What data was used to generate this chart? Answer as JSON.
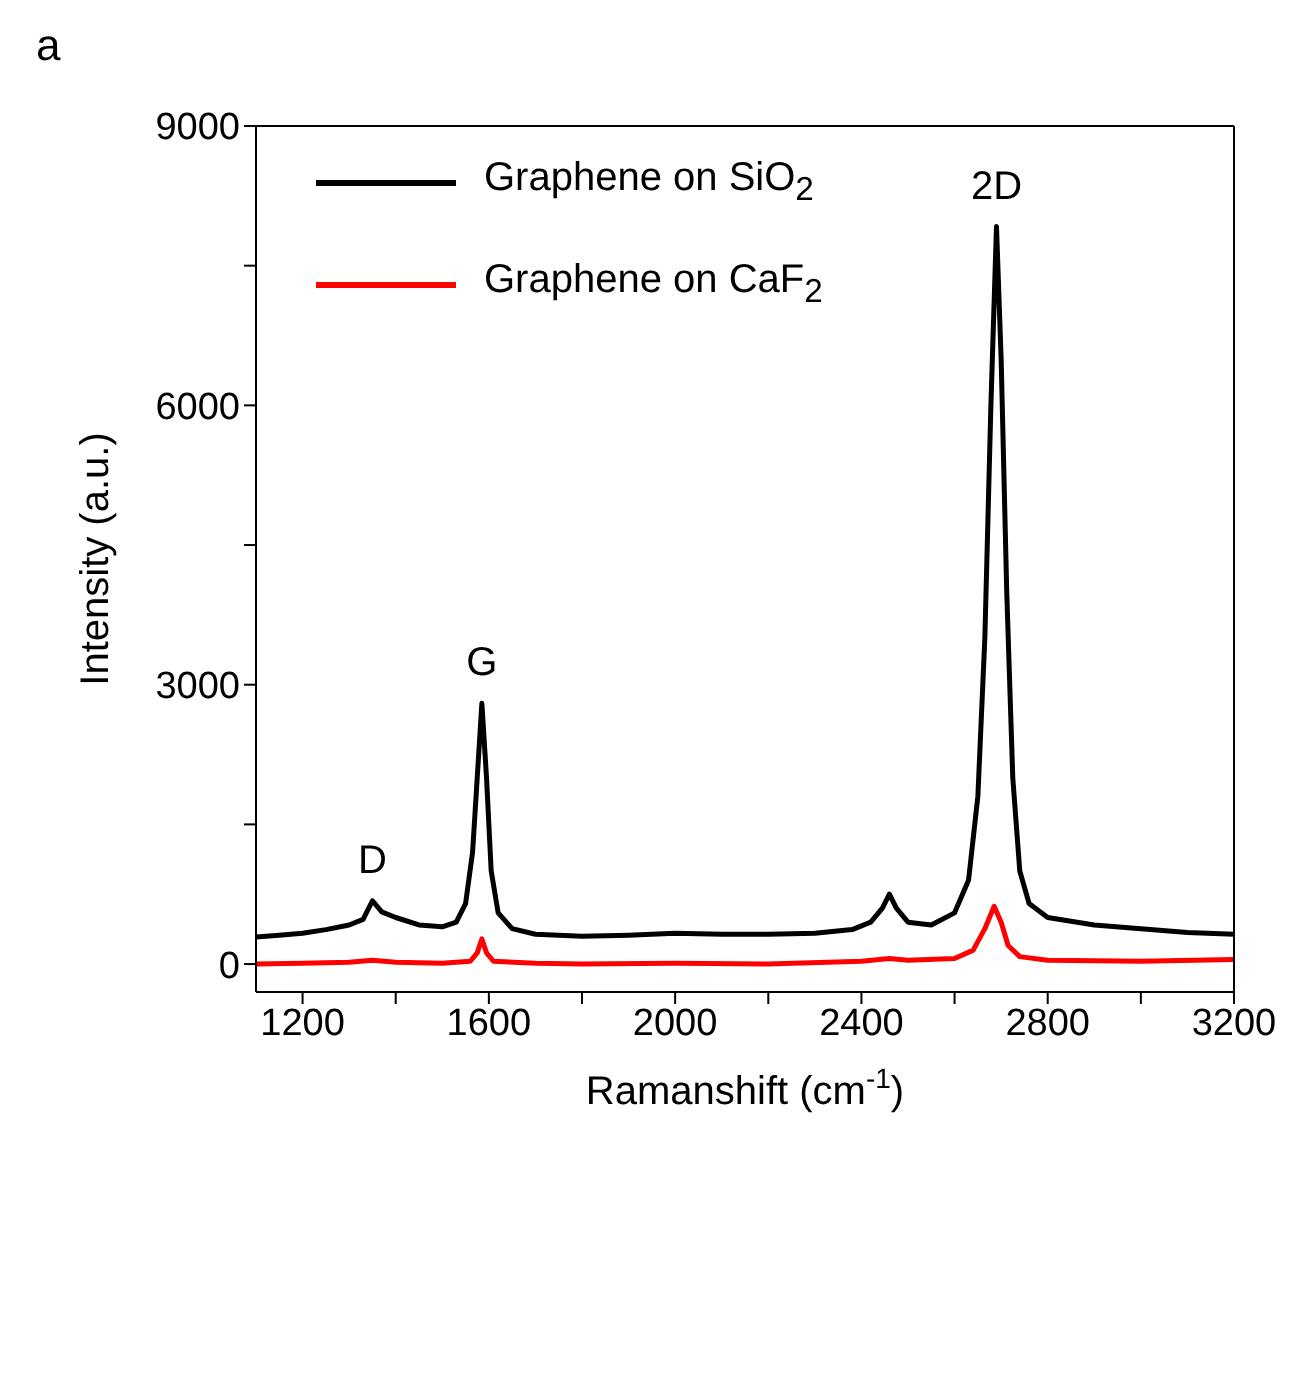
{
  "chart_data": {
    "type": "line",
    "xlabel": "Ramanshift (cm$^{-1}$)",
    "ylabel": "Intensity (a.u.)",
    "xlim": [
      1100,
      3200
    ],
    "ylim": [
      -300,
      9000
    ],
    "xticks": [
      1200,
      {
        "value": 1400,
        "label": null
      },
      1600,
      {
        "value": 1800,
        "label": null
      },
      2000,
      {
        "value": 2200,
        "label": null
      },
      2400,
      {
        "value": 2600,
        "label": null
      },
      2800,
      {
        "value": 3000,
        "label": null
      },
      3200
    ],
    "yticks": [
      0,
      {
        "value": 1500,
        "label": null
      },
      3000,
      {
        "value": 4500,
        "label": null
      },
      6000,
      {
        "value": 7500,
        "label": null
      },
      9000
    ],
    "legend": "top left",
    "marker": "none",
    "line_style": "solid",
    "annotations": [
      "a",
      {
        "text": "D",
        "x": 1350,
        "y": 680
      },
      {
        "text": "G",
        "x": 1585,
        "y": 2800
      },
      {
        "text": "2D",
        "x": 2690,
        "y": 7920
      }
    ],
    "series": [
      {
        "name": "Graphene on SiO$_{2}$",
        "color": "#000000",
        "x": [
          1100,
          1150,
          1200,
          1250,
          1300,
          1330,
          1350,
          1370,
          1400,
          1450,
          1500,
          1530,
          1550,
          1565,
          1575,
          1585,
          1595,
          1605,
          1620,
          1650,
          1700,
          1800,
          1900,
          2000,
          2100,
          2200,
          2300,
          2380,
          2420,
          2445,
          2460,
          2475,
          2500,
          2550,
          2600,
          2630,
          2650,
          2665,
          2678,
          2690,
          2700,
          2712,
          2725,
          2740,
          2760,
          2800,
          2900,
          3000,
          3100,
          3200
        ],
        "values": [
          290,
          310,
          330,
          370,
          420,
          480,
          680,
          560,
          500,
          420,
          400,
          450,
          650,
          1200,
          2000,
          2800,
          2000,
          1000,
          550,
          380,
          320,
          300,
          310,
          330,
          320,
          320,
          330,
          370,
          450,
          600,
          750,
          600,
          450,
          420,
          550,
          900,
          1800,
          3500,
          6000,
          7920,
          6500,
          4000,
          2000,
          1000,
          650,
          500,
          420,
          380,
          340,
          320
        ]
      },
      {
        "name": "Graphene on CaF$_{2}$",
        "color": "#ff0000",
        "x": [
          1100,
          1200,
          1300,
          1350,
          1400,
          1500,
          1560,
          1575,
          1585,
          1595,
          1610,
          1700,
          1800,
          2000,
          2200,
          2400,
          2460,
          2500,
          2600,
          2640,
          2665,
          2685,
          2700,
          2715,
          2740,
          2800,
          3000,
          3200
        ],
        "values": [
          0,
          10,
          20,
          40,
          20,
          10,
          30,
          120,
          270,
          120,
          30,
          10,
          0,
          10,
          0,
          30,
          60,
          40,
          60,
          150,
          380,
          620,
          450,
          200,
          80,
          40,
          30,
          50
        ]
      }
    ]
  }
}
